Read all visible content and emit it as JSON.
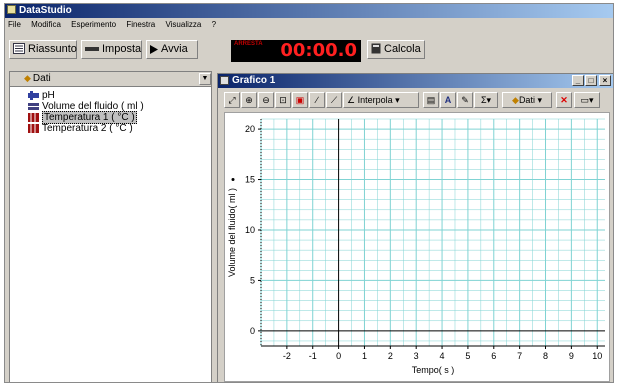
{
  "app": {
    "title": "DataStudio",
    "menu": [
      "File",
      "Modifica",
      "Esperimento",
      "Finestra",
      "Visualizza",
      "?"
    ]
  },
  "toolbar": {
    "summary_label": "Riassunto",
    "setup_label": "Imposta",
    "start_label": "Avvia",
    "timer_label": "ARRESTA",
    "timer_value": "00:00.0",
    "calc_label": "Calcola"
  },
  "data_panel": {
    "title": "Dati",
    "items": [
      {
        "label": "pH",
        "icon": "ph-sensor-icon"
      },
      {
        "label": "Volume del fluido ( ml )",
        "icon": "volume-sensor-icon"
      },
      {
        "label": "Temperatura 1 ( °C )",
        "icon": "temperature-sensor-icon"
      },
      {
        "label": "Temperatura 2 ( °C )",
        "icon": "temperature-sensor-icon"
      }
    ],
    "selected_index": 2
  },
  "graph": {
    "title": "Grafico 1",
    "tools": {
      "interp_label": "Interpola",
      "data_label": "Dati",
      "sigma_label": "Σ",
      "annot_label": "A"
    },
    "window_buttons": [
      "_",
      "□",
      "×"
    ]
  },
  "chart_data": {
    "type": "scatter",
    "xlabel": "Tempo( s )",
    "ylabel": "Volume del fluido( ml )",
    "xlim": [
      -3,
      10.3
    ],
    "ylim": [
      -1.5,
      21
    ],
    "x_ticks": [
      -2,
      -1,
      0,
      1,
      2,
      3,
      4,
      5,
      6,
      7,
      8,
      9,
      10
    ],
    "y_ticks": [
      0,
      5,
      10,
      15,
      20
    ],
    "grid": true,
    "series": []
  },
  "colors": {
    "grid": "#7fd3d3",
    "titlebar_start": "#0a246a",
    "timer_digits": "#ff2020"
  }
}
